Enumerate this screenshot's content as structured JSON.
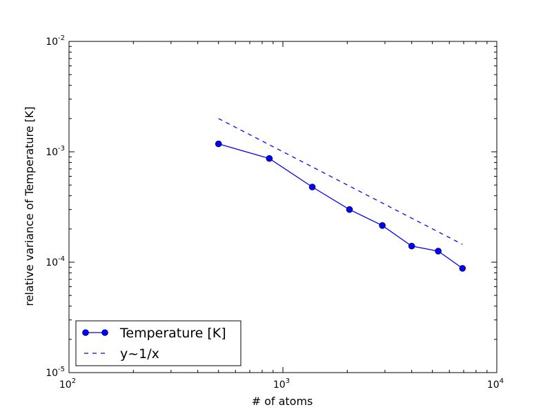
{
  "chart_data": {
    "type": "line",
    "xlabel": "# of atoms",
    "ylabel": "relative variance of Temperature [K]",
    "xscale": "log",
    "yscale": "log",
    "xlim": [
      100,
      10000
    ],
    "ylim": [
      1e-05,
      0.01
    ],
    "grid": false,
    "legend_position": "lower-left",
    "x_ticks": [
      {
        "base": "10",
        "exp": "2"
      },
      {
        "base": "10",
        "exp": "3"
      },
      {
        "base": "10",
        "exp": "4"
      }
    ],
    "y_ticks": [
      {
        "base": "10",
        "exp": "-5"
      },
      {
        "base": "10",
        "exp": "-4"
      },
      {
        "base": "10",
        "exp": "-3"
      },
      {
        "base": "10",
        "exp": "-2"
      }
    ],
    "series": [
      {
        "name": "Temperature [K]",
        "color": "#0000ff",
        "style": "solid",
        "marker": "circle",
        "x": [
          500,
          864,
          1372,
          2048,
          2916,
          4000,
          5324,
          6912
        ],
        "y": [
          0.00118,
          0.00087,
          0.00048,
          0.0003,
          0.000215,
          0.00014,
          0.000126,
          8.8e-05
        ]
      },
      {
        "name": "y~1/x",
        "color": "#0000ff",
        "style": "dashed",
        "marker": "none",
        "x": [
          500,
          6912
        ],
        "y": [
          0.002,
          0.000145
        ]
      }
    ]
  }
}
